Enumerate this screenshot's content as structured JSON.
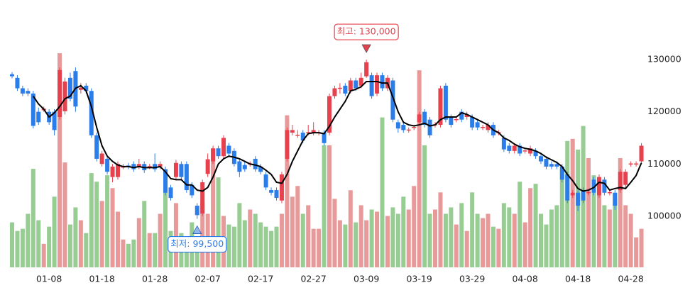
{
  "chart_data": {
    "type": "candlestick",
    "categories": [
      null,
      null,
      null,
      null,
      null,
      null,
      null,
      "01-08",
      null,
      null,
      null,
      null,
      null,
      null,
      null,
      null,
      null,
      "01-18",
      null,
      null,
      null,
      null,
      null,
      null,
      null,
      null,
      null,
      "01-28",
      null,
      null,
      null,
      null,
      null,
      null,
      null,
      null,
      null,
      "02-07",
      null,
      null,
      null,
      null,
      null,
      null,
      null,
      null,
      null,
      "02-17",
      null,
      null,
      null,
      null,
      null,
      null,
      null,
      null,
      null,
      "02-27",
      null,
      null,
      null,
      null,
      null,
      null,
      null,
      null,
      null,
      "03-09",
      null,
      null,
      null,
      null,
      null,
      null,
      null,
      null,
      null,
      "03-19",
      null,
      null,
      null,
      null,
      null,
      null,
      null,
      null,
      null,
      "03-29",
      null,
      null,
      null,
      null,
      null,
      null,
      null,
      null,
      null,
      "04-08",
      null,
      null,
      null,
      null,
      null,
      null,
      null,
      null,
      null,
      "04-18",
      null,
      null,
      null,
      null,
      null,
      null,
      null,
      null,
      null,
      "04-28",
      null,
      null
    ],
    "open": [
      127200,
      126500,
      124500,
      124000,
      123500,
      120000,
      120300,
      120000,
      120000,
      119000,
      120100,
      126500,
      127800,
      124200,
      125000,
      124000,
      115500,
      110000,
      111000,
      107500,
      107500,
      109300,
      109700,
      110000,
      109500,
      110000,
      109400,
      110000,
      109500,
      109000,
      105500,
      107500,
      110000,
      110000,
      106000,
      102000,
      100500,
      108100,
      110500,
      113000,
      111500,
      113500,
      112500,
      110500,
      109800,
      109900,
      111000,
      109500,
      108000,
      105000,
      105000,
      103000,
      111000,
      116000,
      115400,
      116000,
      115900,
      116000,
      115900,
      116000,
      116000,
      123000,
      124400,
      125000,
      124000,
      126000,
      125000,
      126800,
      127000,
      123500,
      127000,
      124500,
      126000,
      118000,
      117500,
      116400,
      116900,
      118000,
      120000,
      118500,
      117400,
      117500,
      125000,
      119000,
      118400,
      120000,
      119000,
      119000,
      118000,
      116900,
      116500,
      117500,
      115900,
      115000,
      113500,
      112500,
      113500,
      112400,
      112000,
      112500,
      111500,
      111000,
      110000,
      110000,
      109500,
      108000,
      104000,
      104500,
      105000,
      104400,
      107000,
      104000,
      107000,
      104400,
      104500,
      105000,
      106000,
      109900,
      109900,
      110500
    ],
    "high": [
      127600,
      127000,
      125000,
      124500,
      124000,
      120800,
      121000,
      120500,
      120500,
      128500,
      126500,
      127500,
      128500,
      125500,
      125500,
      124500,
      116000,
      112500,
      111500,
      110000,
      110500,
      110000,
      110200,
      110500,
      111000,
      110500,
      110000,
      112000,
      110500,
      109500,
      106000,
      110800,
      110500,
      110500,
      106500,
      102500,
      107000,
      112000,
      113500,
      113500,
      115500,
      114000,
      113000,
      111000,
      110500,
      110500,
      111500,
      110000,
      108500,
      105500,
      105500,
      108500,
      117000,
      117500,
      116500,
      116500,
      117500,
      118000,
      116500,
      116500,
      123500,
      125000,
      125500,
      125500,
      126500,
      126500,
      127500,
      130000,
      127500,
      127500,
      127500,
      127000,
      126500,
      118500,
      118000,
      117000,
      117500,
      120000,
      120500,
      119000,
      118000,
      125000,
      125500,
      119500,
      119000,
      120500,
      120000,
      119500,
      118500,
      117500,
      118000,
      118000,
      116500,
      115500,
      114000,
      114000,
      114000,
      113000,
      113500,
      113000,
      112000,
      111500,
      110500,
      110500,
      110000,
      108500,
      105000,
      105000,
      105500,
      105000,
      107500,
      108000,
      107500,
      105000,
      105000,
      109000,
      109000,
      110500,
      110500,
      114000
    ],
    "low": [
      126400,
      124000,
      123000,
      123000,
      116800,
      117500,
      120000,
      117500,
      115500,
      118500,
      119500,
      122000,
      120000,
      123500,
      123500,
      115000,
      110500,
      109500,
      108000,
      106500,
      107000,
      109000,
      109000,
      108500,
      109000,
      108300,
      109000,
      108500,
      109000,
      104000,
      103000,
      107000,
      107000,
      104500,
      103500,
      99500,
      100000,
      107500,
      110000,
      111000,
      111000,
      111500,
      109500,
      107500,
      108500,
      109500,
      108500,
      108000,
      105000,
      104000,
      103000,
      102500,
      110500,
      115500,
      115000,
      114000,
      115500,
      115500,
      115500,
      113500,
      115500,
      122500,
      123500,
      123000,
      123500,
      124000,
      124500,
      126500,
      122500,
      123000,
      124000,
      124000,
      118000,
      116000,
      116000,
      116000,
      116500,
      117500,
      117000,
      115000,
      117000,
      117000,
      118000,
      117000,
      118000,
      118000,
      118500,
      116500,
      116500,
      116500,
      116000,
      115000,
      115500,
      112300,
      112000,
      112000,
      111500,
      112000,
      111500,
      111000,
      110000,
      109000,
      109000,
      109000,
      106500,
      102500,
      103500,
      101000,
      102500,
      104000,
      104000,
      103500,
      104000,
      104000,
      101200,
      104500,
      105500,
      109500,
      109500,
      110000
    ],
    "close": [
      126800,
      124500,
      123500,
      123500,
      117300,
      118000,
      120600,
      118000,
      116500,
      128000,
      125800,
      122500,
      121000,
      124600,
      124000,
      115500,
      111000,
      112000,
      108500,
      109500,
      110000,
      109600,
      109400,
      109000,
      110000,
      108800,
      109600,
      109000,
      110000,
      104500,
      103500,
      110200,
      107500,
      105000,
      104000,
      100200,
      106500,
      110900,
      113000,
      111500,
      115000,
      112000,
      110000,
      108500,
      109000,
      110100,
      109000,
      108500,
      105500,
      104500,
      103500,
      108000,
      116500,
      116500,
      115600,
      114500,
      116100,
      116500,
      116100,
      114000,
      123000,
      124500,
      124600,
      123500,
      126000,
      124500,
      126500,
      129500,
      123000,
      127000,
      124500,
      126500,
      118500,
      116800,
      116500,
      116600,
      117100,
      119500,
      117500,
      115500,
      117600,
      124500,
      118500,
      117500,
      118600,
      118500,
      119500,
      117000,
      117000,
      117100,
      117500,
      115500,
      116100,
      112800,
      112500,
      113500,
      112000,
      112600,
      113000,
      111500,
      110500,
      109500,
      109500,
      109500,
      107000,
      103000,
      104500,
      102000,
      103000,
      104600,
      104500,
      107500,
      104500,
      104600,
      102000,
      108500,
      108500,
      110100,
      110100,
      113500
    ],
    "ma": [
      null,
      null,
      null,
      null,
      123000,
      121500,
      120500,
      119000,
      119800,
      121000,
      122500,
      123000,
      124500,
      125000,
      124000,
      121000,
      117000,
      113500,
      111500,
      110500,
      109800,
      109500,
      109500,
      109300,
      109500,
      109300,
      109300,
      109300,
      109500,
      108500,
      107200,
      107000,
      107000,
      106000,
      106000,
      105000,
      104800,
      105500,
      107500,
      110000,
      111000,
      111500,
      111300,
      111000,
      110500,
      110000,
      109800,
      109500,
      108800,
      108000,
      106500,
      106300,
      108000,
      110500,
      112500,
      114500,
      115800,
      116000,
      116000,
      115800,
      117200,
      119000,
      120500,
      122000,
      124000,
      124300,
      124800,
      125800,
      125800,
      125800,
      125500,
      125500,
      122800,
      120000,
      118000,
      117500,
      117300,
      117500,
      117800,
      117300,
      117500,
      118500,
      119000,
      119000,
      119000,
      119800,
      119500,
      119000,
      118500,
      118000,
      117500,
      116500,
      116000,
      115000,
      114500,
      113800,
      113300,
      113000,
      112800,
      112500,
      112000,
      111300,
      110800,
      110300,
      109500,
      108000,
      106800,
      105300,
      104800,
      105000,
      105500,
      106500,
      106300,
      105000,
      105300,
      105500,
      105300,
      106500,
      107800,
      110200
    ],
    "volume": [
      21,
      17,
      18,
      25,
      46,
      22,
      11,
      19,
      33,
      100,
      49,
      20,
      28,
      22,
      16,
      44,
      40,
      31,
      43,
      37,
      26,
      13,
      11,
      13,
      23,
      31,
      16,
      16,
      25,
      35,
      17,
      30,
      16,
      13,
      21,
      14,
      31,
      25,
      55,
      42,
      24,
      20,
      19,
      30,
      22,
      27,
      25,
      21,
      19,
      17,
      19,
      25,
      71,
      33,
      38,
      25,
      29,
      18,
      18,
      57,
      57,
      32,
      22,
      20,
      36,
      21,
      29,
      22,
      27,
      26,
      70,
      24,
      28,
      25,
      33,
      27,
      38,
      92,
      57,
      25,
      27,
      35,
      25,
      28,
      20,
      30,
      17,
      35,
      25,
      23,
      25,
      19,
      18,
      30,
      28,
      25,
      40,
      21,
      37,
      39,
      25,
      20,
      27,
      29,
      46,
      59,
      60,
      55,
      66,
      51,
      43,
      42,
      29,
      27,
      32,
      51,
      29,
      25,
      14,
      18
    ],
    "volume_ylim": [
      0,
      100
    ],
    "ylim": [
      90200,
      138700
    ],
    "yticks": [
      100000,
      110000,
      120000,
      130000
    ],
    "up_color": "#e8414e",
    "down_color": "#2b7de9",
    "volume_up_color": "#e89a9a",
    "volume_down_color": "#97cc93",
    "ma_color": "#000000",
    "max_label": "최고: 130,000",
    "min_label": "최저: 99,500"
  }
}
